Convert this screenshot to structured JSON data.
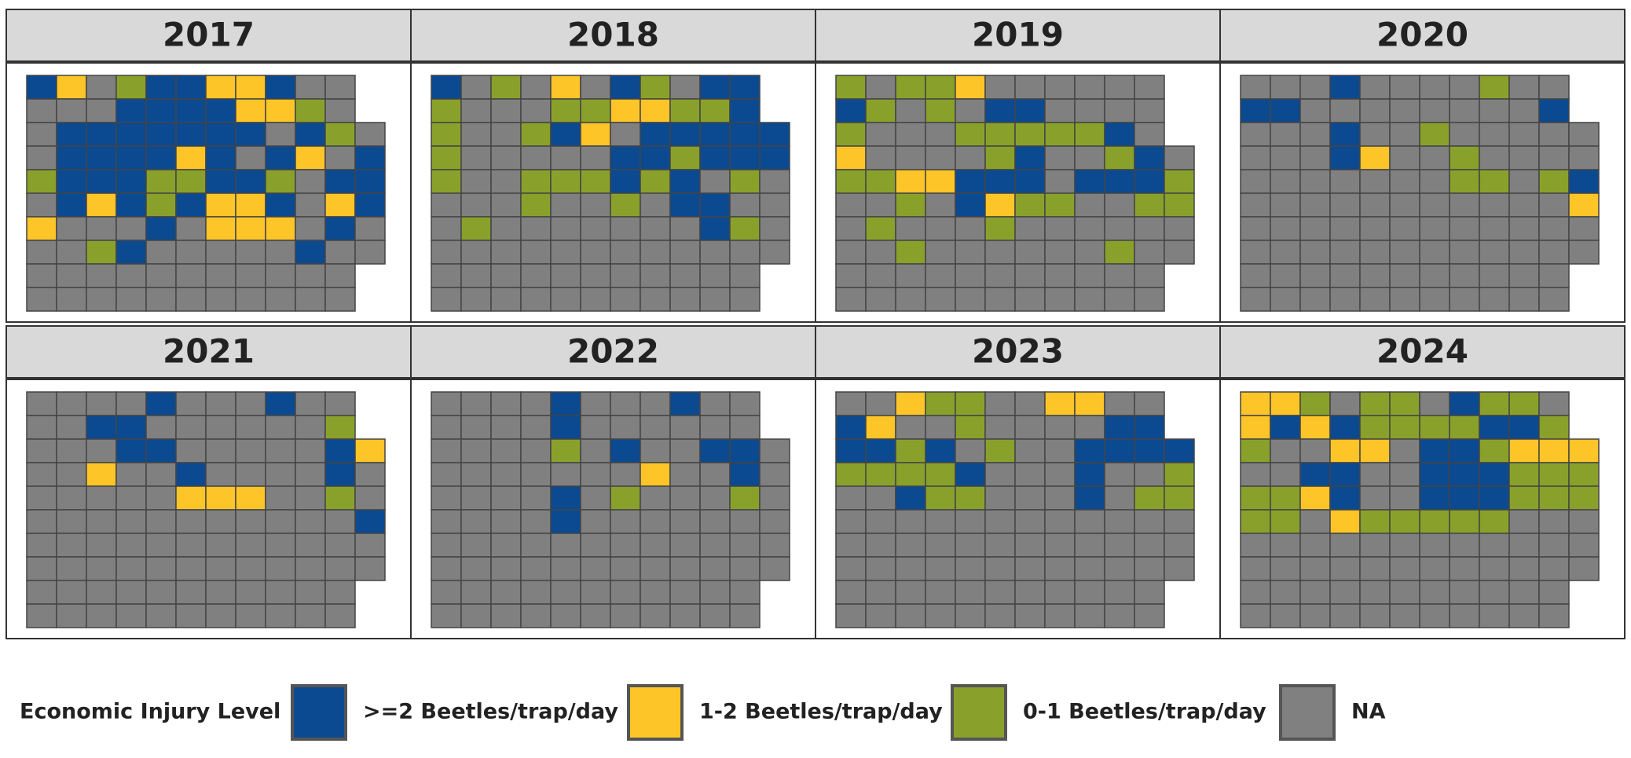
{
  "panels": [
    {
      "title": "2017",
      "map": [
        "01320011033.",
        "33300001123.",
        "300000003023",
        "300001030130",
        "200022002300",
        "301020110310",
        "133303111303",
        "332033333033",
        "33333333333.",
        "33333333333."
      ]
    },
    {
      "title": "2018",
      "map": [
        "03231302300.",
        "23332211220.",
        "233201300000",
        "233333002000",
        "233222020323",
        "333233230033",
        "323333333023",
        "333333333333",
        "33333333333.",
        "33333333333."
      ]
    },
    {
      "title": "2019",
      "map": [
        "23221333333.",
        "02323003333.",
        "23332222203.",
        "133332033203",
        "221100030002",
        "332301223322",
        "323332333333",
        "332333333233",
        "33333333333.",
        "33333333333."
      ]
    },
    {
      "title": "2020",
      "map": [
        "33303333233.",
        "00333333330.",
        "333033233333",
        "333013323333",
        "333333322320",
        "333333333331",
        "333333333333",
        "333333333333",
        "33333333333.",
        "33333333333."
      ]
    },
    {
      "title": "2021",
      "map": [
        "33330333033.",
        "33003333332.",
        "333003333301",
        "331330333303",
        "333331113323",
        "333333333330",
        "333333333333",
        "333333333333",
        "33333333333.",
        "33333333333."
      ]
    },
    {
      "title": "2022",
      "map": [
        "33330333033.",
        "33330333333.",
        "333323033003",
        "333333313303",
        "333303233323",
        "333303333333",
        "333333333333",
        "333333333333",
        "33333333333.",
        "33333333333."
      ]
    },
    {
      "title": "2023",
      "map": [
        "33122331133.",
        "01332333300.",
        "002032330000",
        "222203330332",
        "330223330322",
        "333333333333",
        "333333333333",
        "333333333333",
        "33333333333.",
        "33333333333."
      ]
    },
    {
      "title": "2024",
      "map": [
        "11232230223.",
        "10102222002.",
        "233113002111",
        "330033000222",
        "221033000222",
        "223122222333",
        "333333333333",
        "333333333333",
        "33333333333.",
        "33333333333."
      ]
    }
  ],
  "legend": {
    "title": "Economic Injury Level",
    "items": [
      {
        "label": ">=2 Beetles/trap/day",
        "color": "#0b4a91"
      },
      {
        "label": "1-2 Beetles/trap/day",
        "color": "#fdc527"
      },
      {
        "label": "0-1 Beetles/trap/day",
        "color": "#89a12b"
      },
      {
        "label": "NA",
        "color": "#808080"
      }
    ]
  }
}
